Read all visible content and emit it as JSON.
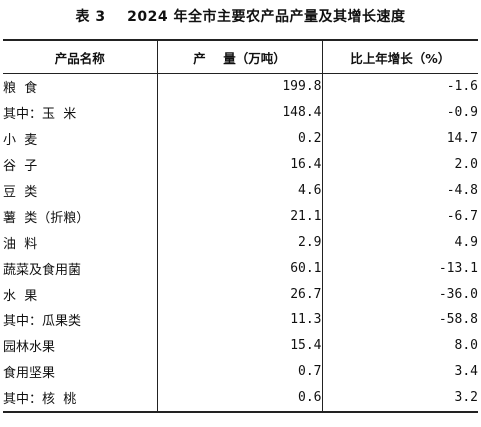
{
  "title": "表 3    2024 年全市主要农产品产量及其增长速度",
  "headers": {
    "name": "产品名称",
    "output": "产    量（万吨）",
    "growth": "比上年增长（%）"
  },
  "rows": [
    {
      "name": "粮  食",
      "output": "199.8",
      "growth": "-1.6"
    },
    {
      "name": "其中：玉  米",
      "output": "148.4",
      "growth": "-0.9"
    },
    {
      "name": "小  麦",
      "output": "0.2",
      "growth": "14.7"
    },
    {
      "name": "谷  子",
      "output": "16.4",
      "growth": "2.0"
    },
    {
      "name": "豆  类",
      "output": "4.6",
      "growth": "-4.8"
    },
    {
      "name": "薯  类（折粮）",
      "output": "21.1",
      "growth": "-6.7"
    },
    {
      "name": "油  料",
      "output": "2.9",
      "growth": "4.9"
    },
    {
      "name": "蔬菜及食用菌",
      "output": "60.1",
      "growth": "-13.1"
    },
    {
      "name": "水  果",
      "output": "26.7",
      "growth": "-36.0"
    },
    {
      "name": "其中：瓜果类",
      "output": "11.3",
      "growth": "-58.8"
    },
    {
      "name": "园林水果",
      "output": "15.4",
      "growth": "8.0"
    },
    {
      "name": "食用坚果",
      "output": "0.7",
      "growth": "3.4"
    },
    {
      "name": "其中：核  桃",
      "output": "0.6",
      "growth": "3.2"
    }
  ]
}
